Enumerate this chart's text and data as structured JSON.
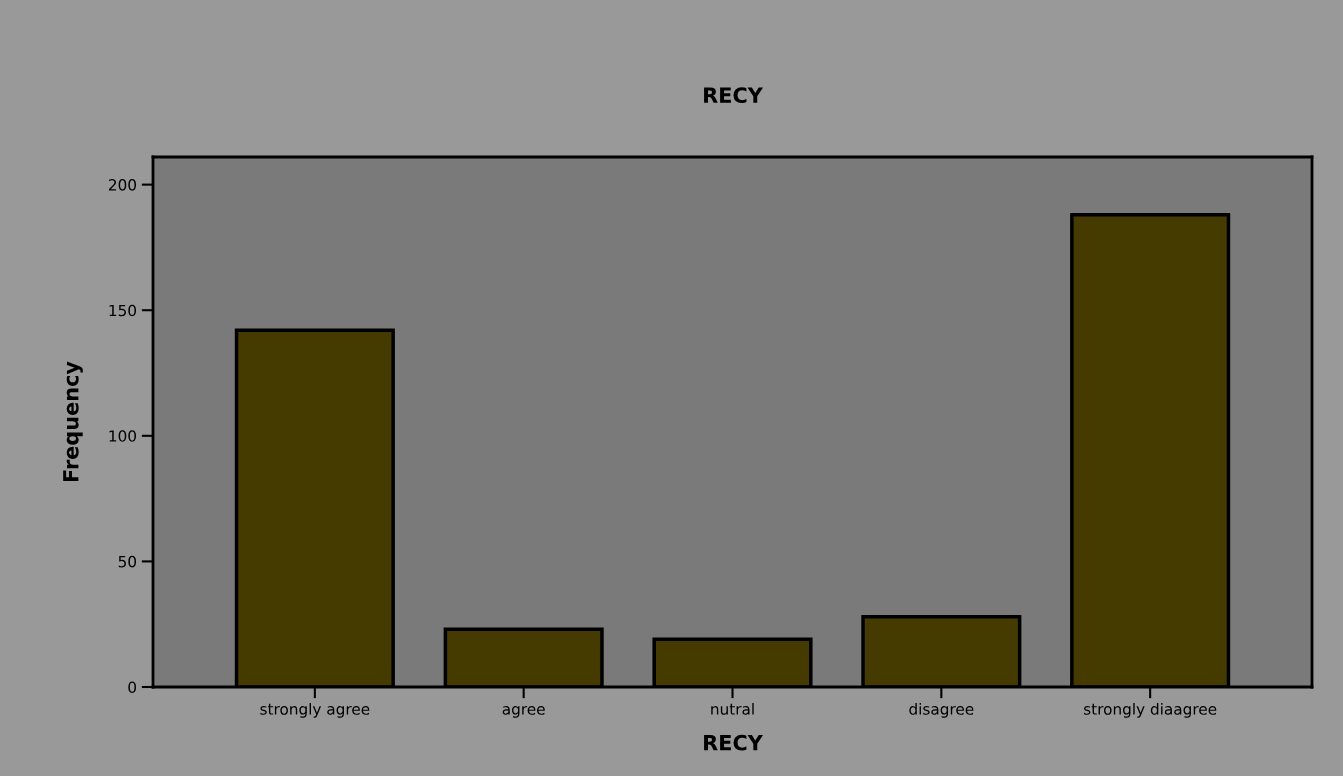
{
  "chart_data": {
    "type": "bar",
    "title": "RECY",
    "xlabel": "RECY",
    "ylabel": "Frequency",
    "categories": [
      "strongly agree",
      "agree",
      "nutral",
      "disagree",
      "strongly diaagree"
    ],
    "values": [
      142,
      23,
      19,
      28,
      188
    ],
    "color": "#453a00",
    "ylim": [
      0,
      211
    ],
    "yticks": [
      0,
      50,
      100,
      150,
      200
    ],
    "grid": false
  }
}
